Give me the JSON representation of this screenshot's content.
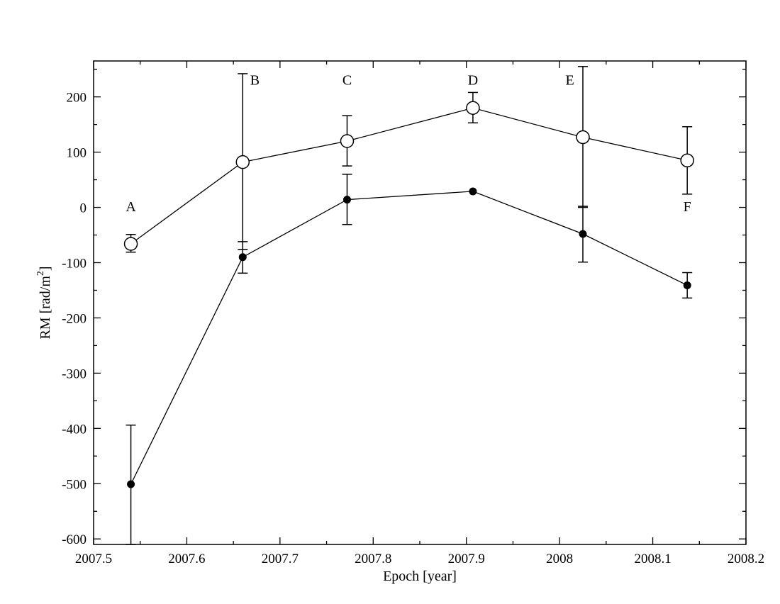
{
  "chart_data": {
    "type": "scatter",
    "xlabel": "Epoch [year]",
    "ylabel": {
      "main": "RM [rad/m",
      "superscript": "2",
      "close": "]"
    },
    "xlim": [
      2007.5,
      2008.2
    ],
    "ylim": [
      -610,
      265
    ],
    "xticks": [
      {
        "value": 2007.5,
        "label": "2007.5"
      },
      {
        "value": 2007.6,
        "label": "2007.6"
      },
      {
        "value": 2007.7,
        "label": "2007.7"
      },
      {
        "value": 2007.8,
        "label": "2007.8"
      },
      {
        "value": 2007.9,
        "label": "2007.9"
      },
      {
        "value": 2008.0,
        "label": "2008"
      },
      {
        "value": 2008.1,
        "label": "2008.1"
      },
      {
        "value": 2008.2,
        "label": "2008.2"
      }
    ],
    "yticks": [
      {
        "value": 200,
        "label": "200"
      },
      {
        "value": 100,
        "label": "100"
      },
      {
        "value": 0,
        "label": "0"
      },
      {
        "value": -100,
        "label": "-100"
      },
      {
        "value": -200,
        "label": "-200"
      },
      {
        "value": -300,
        "label": "-300"
      },
      {
        "value": -400,
        "label": "-400"
      },
      {
        "value": -500,
        "label": "-500"
      },
      {
        "value": -600,
        "label": "-600"
      }
    ],
    "grid": false,
    "series": [
      {
        "marker": "open-circle",
        "points": [
          {
            "x": 2007.54,
            "y": -66,
            "err_low": -81,
            "err_high": -49
          },
          {
            "x": 2007.66,
            "y": 82,
            "err_low": -76,
            "err_high": 242
          },
          {
            "x": 2007.772,
            "y": 120,
            "err_low": 75,
            "err_high": 166
          },
          {
            "x": 2007.907,
            "y": 180,
            "err_low": 153,
            "err_high": 208
          },
          {
            "x": 2008.025,
            "y": 127,
            "err_low": 0,
            "err_high": 255
          },
          {
            "x": 2008.137,
            "y": 85,
            "err_low": 24,
            "err_high": 146
          }
        ]
      },
      {
        "marker": "filled-circle",
        "points": [
          {
            "x": 2007.54,
            "y": -501,
            "err_low": -610,
            "err_high": -394
          },
          {
            "x": 2007.66,
            "y": -90,
            "err_low": -119,
            "err_high": -62
          },
          {
            "x": 2007.772,
            "y": 14,
            "err_low": -31,
            "err_high": 60
          },
          {
            "x": 2007.907,
            "y": 29,
            "err_low": null,
            "err_high": null
          },
          {
            "x": 2008.025,
            "y": -48,
            "err_low": -99,
            "err_high": 2
          },
          {
            "x": 2008.137,
            "y": -141,
            "err_low": -164,
            "err_high": -118
          }
        ]
      }
    ],
    "annotations": [
      {
        "text": "A",
        "x": 2007.54,
        "y": -7
      },
      {
        "text": "B",
        "x": 2007.673,
        "y": 222
      },
      {
        "text": "C",
        "x": 2007.772,
        "y": 222
      },
      {
        "text": "D",
        "x": 2007.907,
        "y": 222
      },
      {
        "text": "E",
        "x": 2008.011,
        "y": 222
      },
      {
        "text": "F",
        "x": 2008.137,
        "y": -7
      }
    ]
  }
}
